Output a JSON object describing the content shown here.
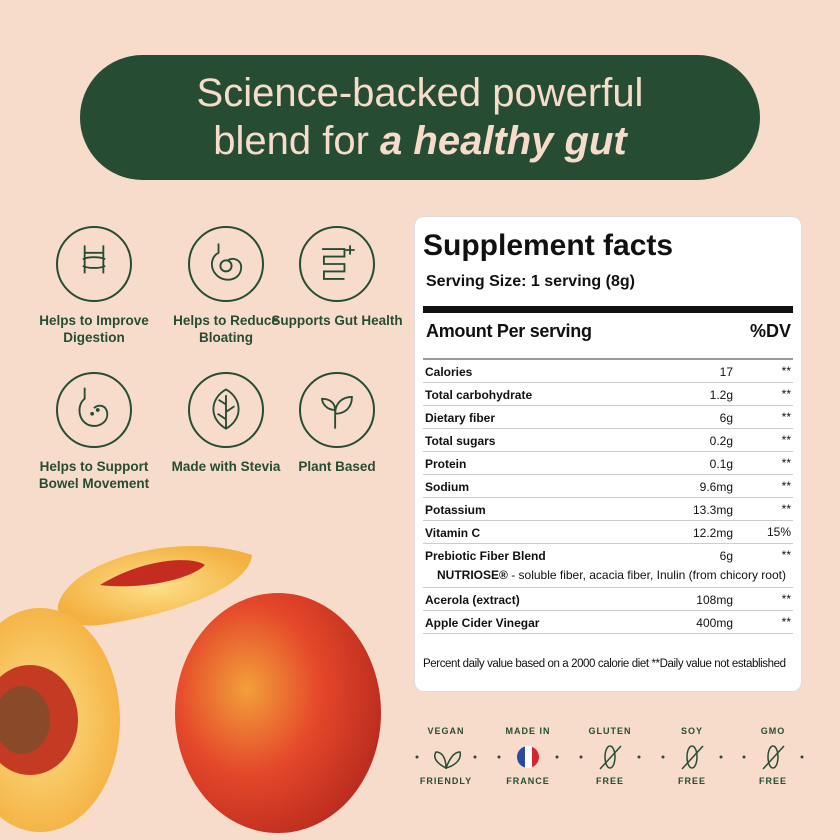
{
  "banner": {
    "line1": "Science-backed powerful",
    "line2a": "blend for ",
    "line2b": "a healthy gut"
  },
  "features": [
    {
      "label": "Helps to Improve Digestion",
      "icon": "intestine-icon"
    },
    {
      "label": "Helps to Reduce Bloating",
      "icon": "stomach-icon"
    },
    {
      "label": "Supports Gut Health",
      "icon": "intestine-plus-icon"
    },
    {
      "label": "Helps to Support Bowel Movement",
      "icon": "digestive-tract-icon"
    },
    {
      "label": "Made with Stevia",
      "icon": "leaf-icon"
    },
    {
      "label": "Plant Based",
      "icon": "sprout-icon"
    }
  ],
  "facts": {
    "title": "Supplement facts",
    "serving": "Serving Size: 1 serving (8g)",
    "amount_header": "Amount Per serving",
    "dv_header": "%DV",
    "rows": [
      {
        "name": "Calories",
        "value": "17",
        "dv": "**"
      },
      {
        "name": "Total carbohydrate",
        "value": "1.2g",
        "dv": "**"
      },
      {
        "name": "Dietary fiber",
        "value": "6g",
        "dv": "**"
      },
      {
        "name": "Total sugars",
        "value": "0.2g",
        "dv": "**"
      },
      {
        "name": "Protein",
        "value": "0.1g",
        "dv": "**"
      },
      {
        "name": "Sodium",
        "value": "9.6mg",
        "dv": "**"
      },
      {
        "name": "Potassium",
        "value": "13.3mg",
        "dv": "**"
      },
      {
        "name": "Vitamin C",
        "value": "12.2mg",
        "dv": "15%"
      },
      {
        "name": "Prebiotic Fiber Blend",
        "value": "6g",
        "dv": "**",
        "sub_bold": "NUTRIOSE®",
        "sub": " - soluble fiber, acacia fiber, Inulin (from chicory root)"
      },
      {
        "name": "Acerola (extract)",
        "value": "108mg",
        "dv": "**"
      },
      {
        "name": "Apple Cider Vinegar",
        "value": "400mg",
        "dv": "**"
      }
    ],
    "footnote": "Percent daily value based on a 2000 calorie diet  **Daily value not established"
  },
  "badges": [
    {
      "top": "VEGAN",
      "bottom": "FRIENDLY",
      "icon": "leaf-icon"
    },
    {
      "top": "MADE IN",
      "bottom": "FRANCE",
      "icon": "france-flag-icon"
    },
    {
      "top": "GLUTEN",
      "bottom": "FREE",
      "icon": "wheat-crossed-icon"
    },
    {
      "top": "SOY",
      "bottom": "FREE",
      "icon": "soy-crossed-icon"
    },
    {
      "top": "GMO",
      "bottom": "FREE",
      "icon": "dna-crossed-icon"
    }
  ],
  "colors": {
    "brand_green": "#264d33",
    "background": "#f8dccb"
  }
}
